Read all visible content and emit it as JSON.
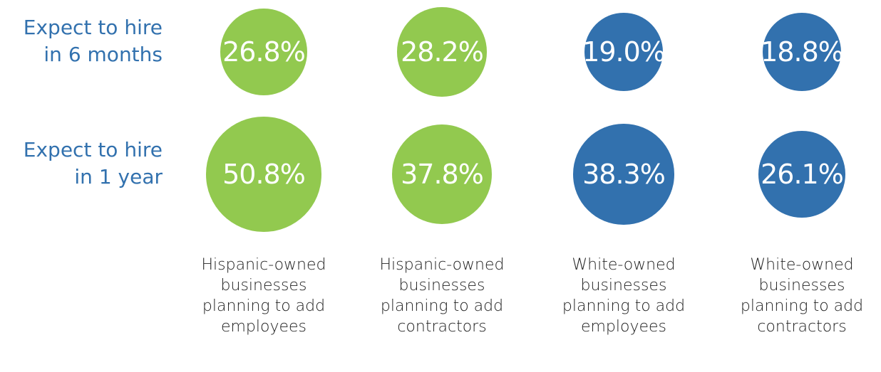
{
  "chart_data": {
    "type": "bubble",
    "categories": [
      "Hispanic-owned businesses planning to add employees",
      "Hispanic-owned businesses planning to add contractors",
      "White-owned businesses planning to add employees",
      "White-owned businesses planning to add contractors"
    ],
    "colors": [
      "#92c94f",
      "#92c94f",
      "#3271ae",
      "#3271ae"
    ],
    "series": [
      {
        "name": "Expect to hire in 6 months",
        "values": [
          26.8,
          28.2,
          19.0,
          18.8
        ],
        "value_labels": [
          "26.8%",
          "28.2%",
          "19.0%",
          "18.8%"
        ]
      },
      {
        "name": "Expect to hire in 1 year",
        "values": [
          50.8,
          37.8,
          38.3,
          26.1
        ],
        "value_labels": [
          "50.8%",
          "37.8%",
          "38.3%",
          "26.1%"
        ]
      }
    ]
  }
}
